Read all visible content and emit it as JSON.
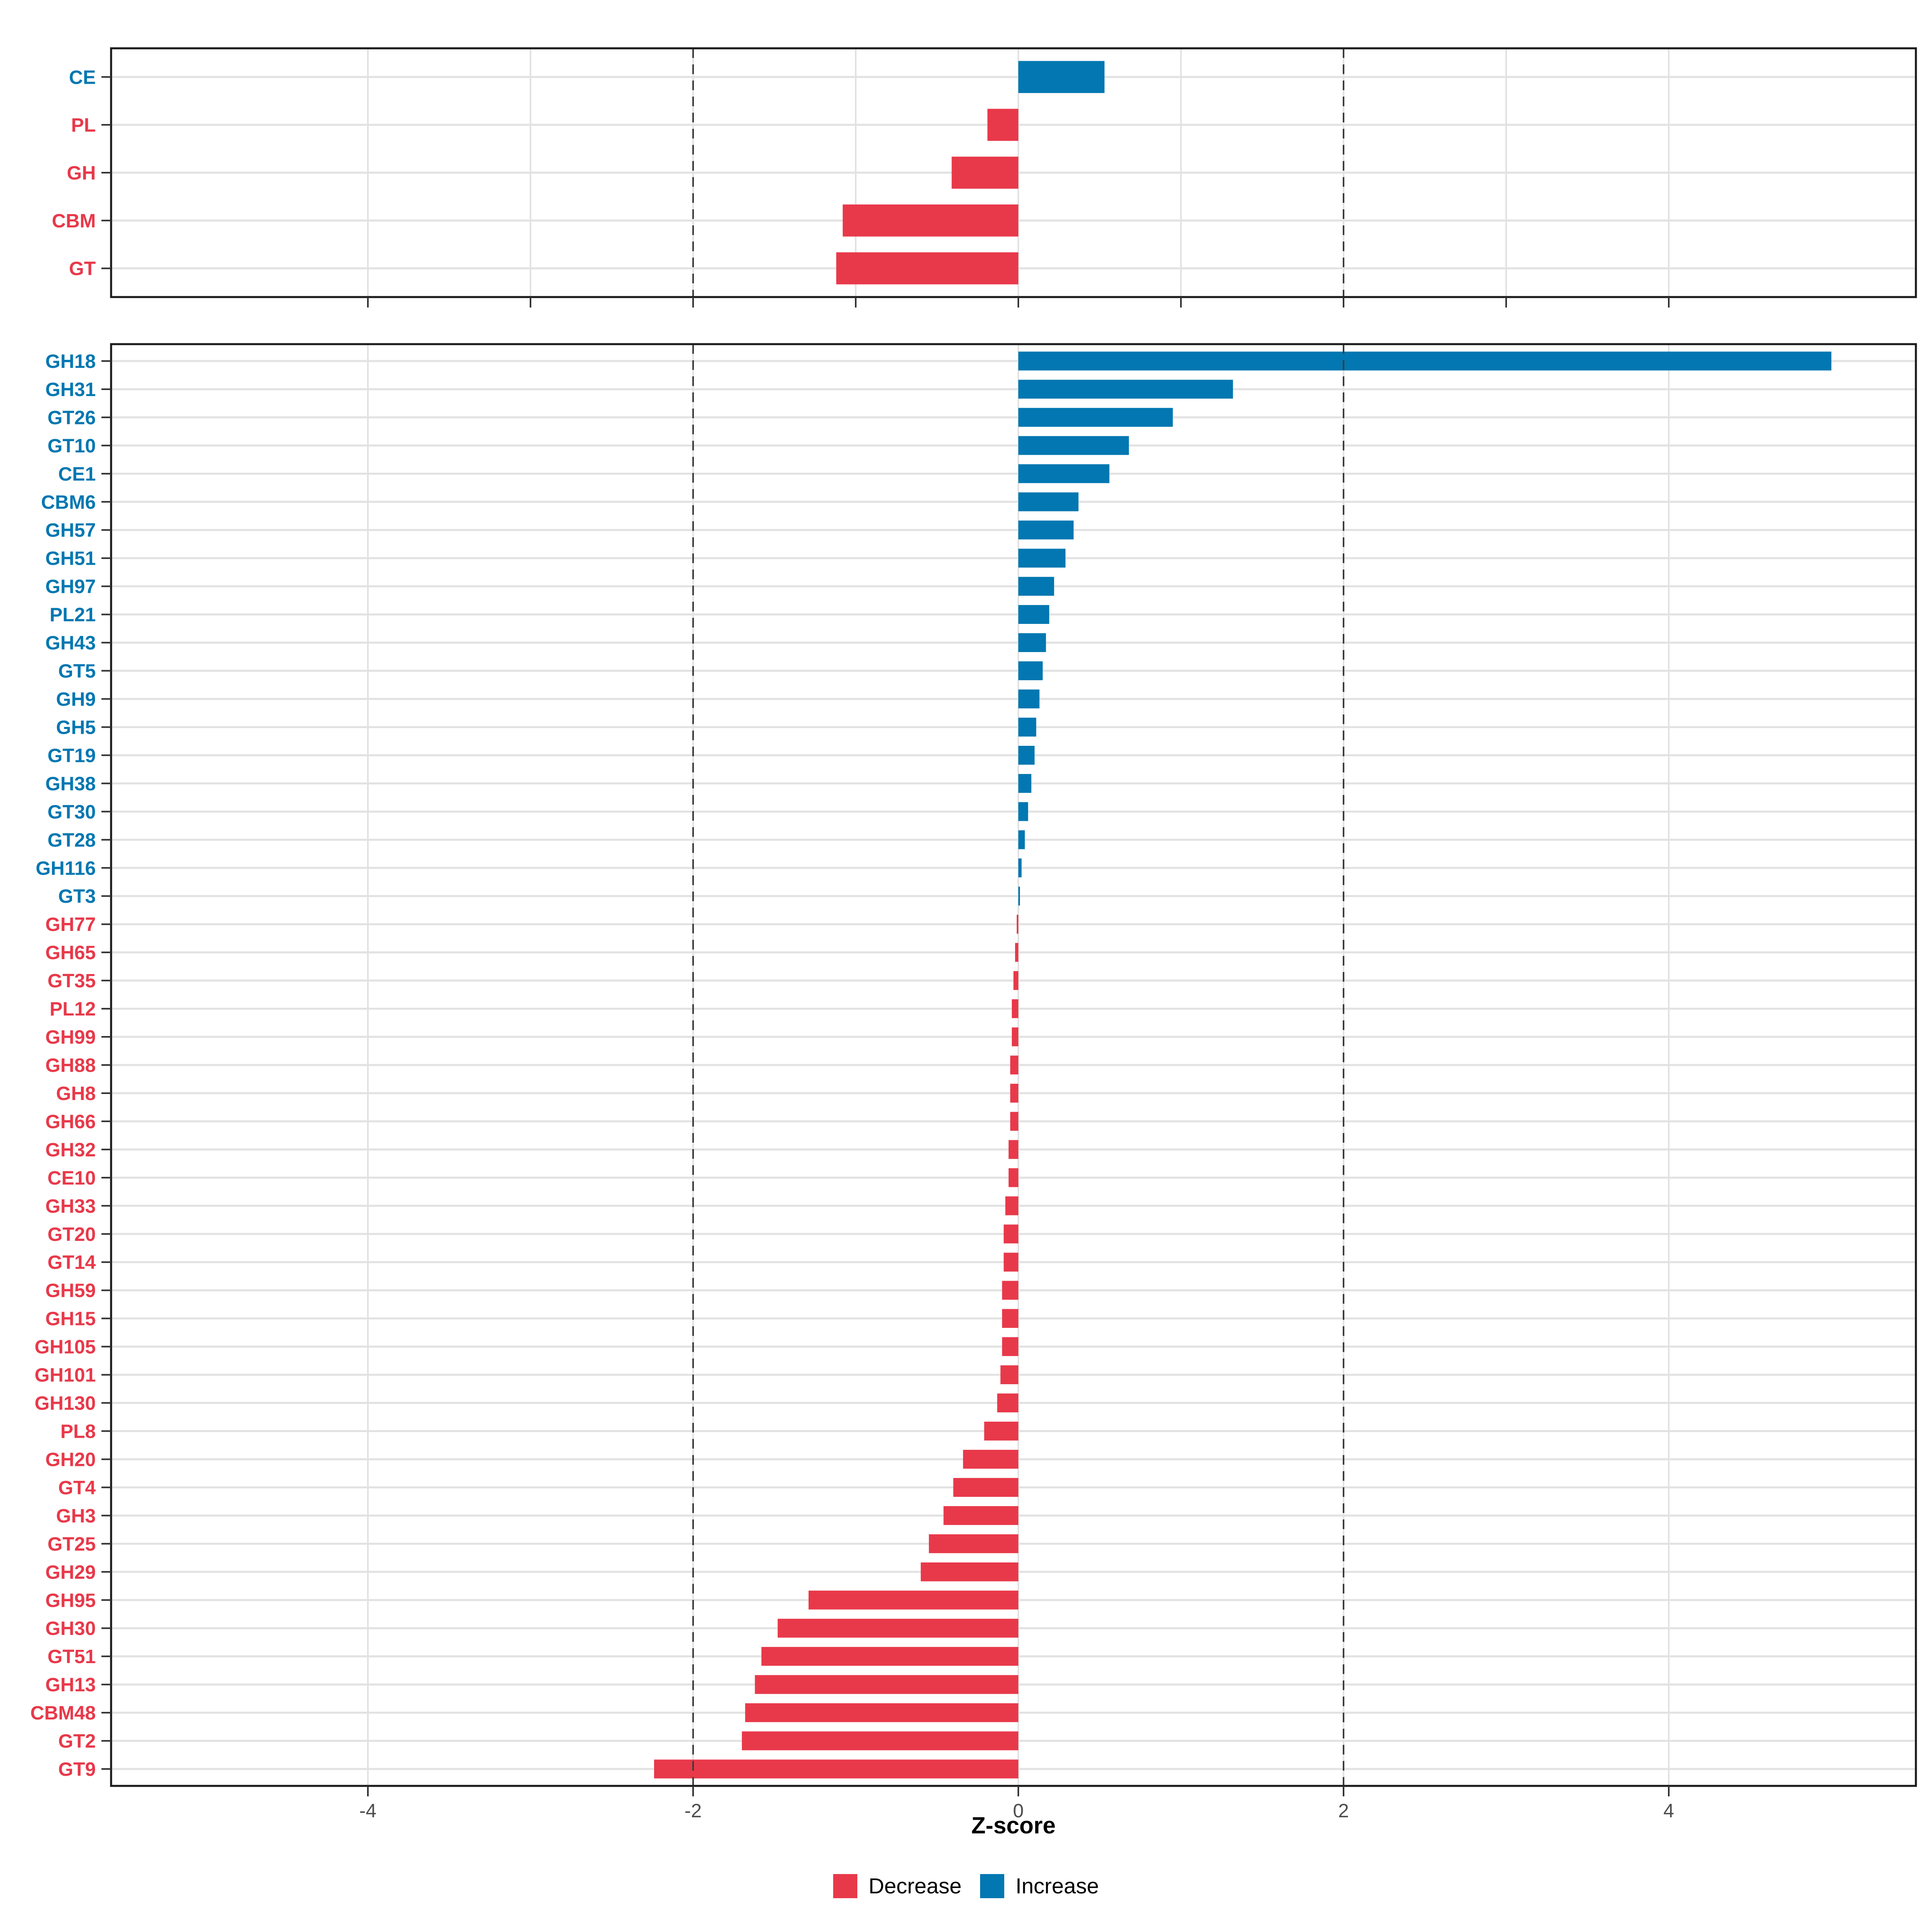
{
  "figure": {
    "background": "#FFFFFF",
    "x_axis_title": "Z-score",
    "x_tick_labels": [
      "-4",
      "-2",
      "0",
      "2",
      "4"
    ]
  },
  "legend": {
    "items": [
      {
        "label": "Decrease",
        "color": "#E8394A"
      },
      {
        "label": "Increase",
        "color": "#0277B1"
      }
    ]
  },
  "colors": {
    "increase": "#0277B1",
    "decrease": "#E8394A",
    "gridline": "#E2E2E2",
    "panel_border": "#1A1A1A",
    "tick_mark": "#333333",
    "x_tick_text": "#4D4D4D",
    "dashed_line": "#3C3C3C"
  },
  "chart_data": [
    {
      "name": "cazyme-class-panel",
      "type": "bar",
      "orientation": "horizontal",
      "title": "",
      "xlabel": "",
      "categories": [
        "CE",
        "PL",
        "GH",
        "CBM",
        "GT"
      ],
      "values": [
        0.53,
        -0.19,
        -0.41,
        -1.08,
        -1.12
      ],
      "directions": [
        "Increase",
        "Decrease",
        "Decrease",
        "Decrease",
        "Decrease"
      ],
      "x_ticks": [
        -4,
        -3,
        -2,
        -1,
        0,
        1,
        2,
        3,
        4
      ],
      "x_tick_labels": [],
      "dashed_vlines": [
        -2,
        2
      ],
      "xlim": [
        -5.58,
        5.52
      ],
      "grid": "major",
      "legend_position": "none"
    },
    {
      "name": "cazyme-family-panel",
      "type": "bar",
      "orientation": "horizontal",
      "title": "",
      "xlabel": "Z-score",
      "categories": [
        "GH18",
        "GH31",
        "GT26",
        "GT10",
        "CE1",
        "CBM6",
        "GH57",
        "GH51",
        "GH97",
        "PL21",
        "GH43",
        "GT5",
        "GH9",
        "GH5",
        "GT19",
        "GH38",
        "GT30",
        "GT28",
        "GH116",
        "GT3",
        "GH77",
        "GH65",
        "GT35",
        "PL12",
        "GH99",
        "GH88",
        "GH8",
        "GH66",
        "GH32",
        "CE10",
        "GH33",
        "GT20",
        "GT14",
        "GH59",
        "GH15",
        "GH105",
        "GH101",
        "GH130",
        "PL8",
        "GH20",
        "GT4",
        "GH3",
        "GT25",
        "GH29",
        "GH95",
        "GH30",
        "GT51",
        "GH13",
        "CBM48",
        "GT2",
        "GT9"
      ],
      "values": [
        5.0,
        1.32,
        0.95,
        0.68,
        0.56,
        0.37,
        0.34,
        0.29,
        0.22,
        0.19,
        0.17,
        0.15,
        0.13,
        0.11,
        0.1,
        0.08,
        0.06,
        0.04,
        0.02,
        0.01,
        -0.01,
        -0.02,
        -0.03,
        -0.04,
        -0.04,
        -0.05,
        -0.05,
        -0.05,
        -0.06,
        -0.06,
        -0.08,
        -0.09,
        -0.09,
        -0.1,
        -0.1,
        -0.1,
        -0.11,
        -0.13,
        -0.21,
        -0.34,
        -0.4,
        -0.46,
        -0.55,
        -0.6,
        -1.29,
        -1.48,
        -1.58,
        -1.62,
        -1.68,
        -1.7,
        -2.24
      ],
      "directions": [
        "Increase",
        "Increase",
        "Increase",
        "Increase",
        "Increase",
        "Increase",
        "Increase",
        "Increase",
        "Increase",
        "Increase",
        "Increase",
        "Increase",
        "Increase",
        "Increase",
        "Increase",
        "Increase",
        "Increase",
        "Increase",
        "Increase",
        "Increase",
        "Decrease",
        "Decrease",
        "Decrease",
        "Decrease",
        "Decrease",
        "Decrease",
        "Decrease",
        "Decrease",
        "Decrease",
        "Decrease",
        "Decrease",
        "Decrease",
        "Decrease",
        "Decrease",
        "Decrease",
        "Decrease",
        "Decrease",
        "Decrease",
        "Decrease",
        "Decrease",
        "Decrease",
        "Decrease",
        "Decrease",
        "Decrease",
        "Decrease",
        "Decrease",
        "Decrease",
        "Decrease",
        "Decrease",
        "Decrease",
        "Decrease"
      ],
      "x_ticks": [
        -4,
        -2,
        0,
        2,
        4
      ],
      "x_tick_labels": [
        "-4",
        "-2",
        "0",
        "2",
        "4"
      ],
      "dashed_vlines": [
        -2,
        2
      ],
      "xlim": [
        -5.58,
        5.52
      ],
      "grid": "major",
      "legend_position": "bottom"
    }
  ]
}
